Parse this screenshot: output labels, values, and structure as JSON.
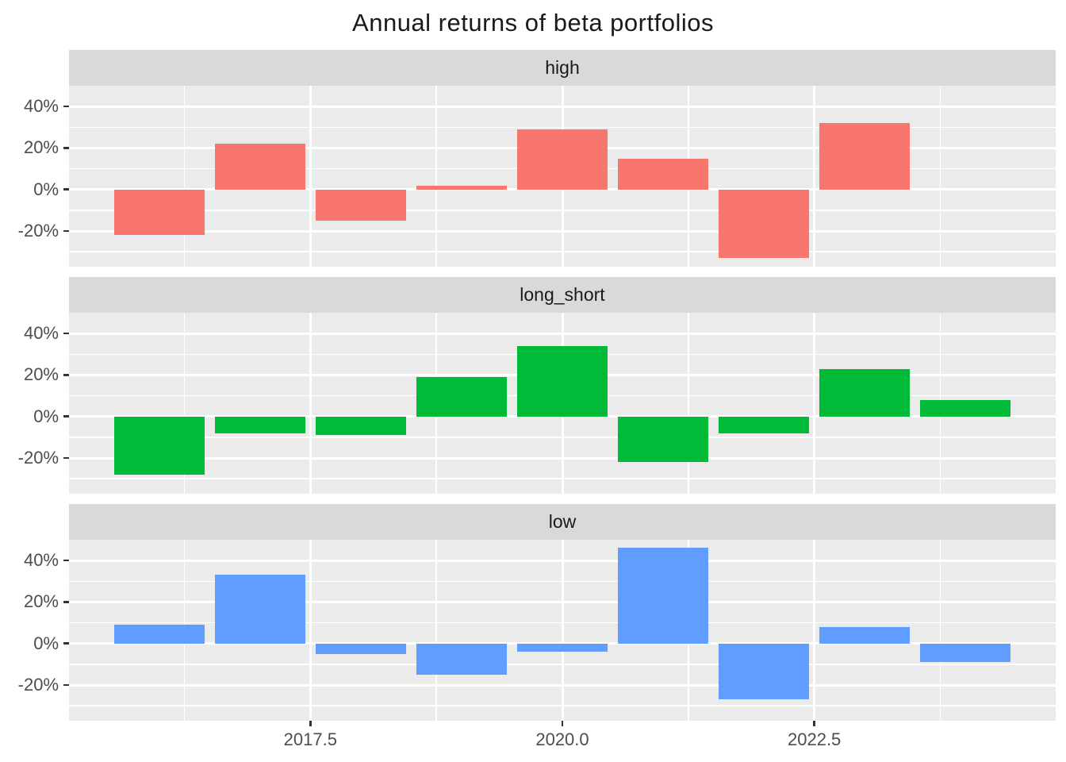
{
  "title": "Annual returns of beta portfolios",
  "chart_data": {
    "type": "bar",
    "faceted": true,
    "facet_layout": "rows",
    "grid": true,
    "legend": false,
    "xlim": [
      2015.105,
      2024.895
    ],
    "ylim": [
      -37,
      50
    ],
    "bar_width_years": 0.9,
    "x_axis": {
      "major_ticks": [
        2017.5,
        2020.0,
        2022.5
      ],
      "major_labels": [
        "2017.5",
        "2020.0",
        "2022.5"
      ],
      "minor_ticks": [
        2016.25,
        2018.75,
        2021.25,
        2023.75
      ]
    },
    "y_axis": {
      "major_ticks": [
        40,
        20,
        0,
        -20
      ],
      "major_labels": [
        "40%",
        "20%",
        "0%",
        "-20%"
      ],
      "minor_ticks": [
        30,
        10,
        -10,
        -30
      ],
      "unit": "percent"
    },
    "facets": [
      {
        "label": "high",
        "color": "#F8766D",
        "years": [
          2016,
          2017,
          2018,
          2019,
          2020,
          2021,
          2022,
          2023
        ],
        "values": [
          -22,
          22,
          -15,
          2,
          29,
          15,
          -33,
          32
        ]
      },
      {
        "label": "long_short",
        "color": "#00BA38",
        "years": [
          2016,
          2017,
          2018,
          2019,
          2020,
          2021,
          2022,
          2023,
          2024
        ],
        "values": [
          -28,
          -8,
          -9,
          19,
          34,
          -22,
          -8,
          23,
          8
        ]
      },
      {
        "label": "low",
        "color": "#619CFF",
        "years": [
          2016,
          2017,
          2018,
          2019,
          2020,
          2021,
          2022,
          2023,
          2024
        ],
        "values": [
          9,
          33,
          -5,
          -15,
          -4,
          46,
          -27,
          8,
          -9
        ]
      }
    ]
  },
  "style": {
    "panel_bg": "#EBEBEB",
    "strip_bg": "#D9D9D9",
    "grid_color": "#FFFFFF",
    "axis_text_color": "#4D4D4D",
    "strip_text_color": "#1A1A1A",
    "title_color": "#1A1A1A",
    "tick_mark_color": "#333333"
  }
}
